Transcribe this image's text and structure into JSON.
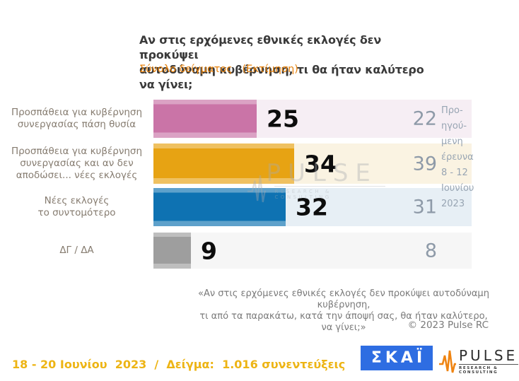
{
  "header": {
    "title": "Αν στις ερχόμενες εθνικές εκλογές δεν προκύψει\nαυτοδύναμη κυβέρνηση, τι θα ήταν καλύτερο να γίνει;",
    "subtitle": "Σύνολο δείγματος   (Εκτίμηση)"
  },
  "chart_data": {
    "type": "bar",
    "orientation": "horizontal",
    "title": "Αν στις ερχόμενες εθνικές εκλογές δεν προκύψει αυτοδύναμη κυβέρνηση, τι θα ήταν καλύτερο να γίνει;",
    "subtitle": "Σύνολο δείγματος (Εκτίμηση)",
    "categories": [
      "Προσπάθεια για κυβέρνηση συνεργασίας πάση θυσία",
      "Προσπάθεια για κυβέρνηση συνεργασίας και αν δεν αποδώσει... νέες εκλογές",
      "Νέες εκλογές το συντομότερο",
      "ΔΓ / ΔΑ"
    ],
    "series": [
      {
        "name": "Εκτίμηση 18 - 20 Ιουνίου 2023",
        "values": [
          25,
          34,
          32,
          9
        ]
      },
      {
        "name": "Προηγούμενη έρευνα 8 - 12 Ιουνίου 2023",
        "values": [
          22,
          39,
          31,
          8
        ]
      }
    ],
    "bar_colors": [
      "#ca74a7",
      "#e7a313",
      "#0e72b2",
      "#9e9e9e"
    ],
    "row_tint_colors": [
      "#f6eef4",
      "#faf3e2",
      "#e7eff5",
      "#f6f6f6"
    ],
    "xlim": [
      0,
      77
    ],
    "grid": false,
    "legend_position": "previous-values-right-column"
  },
  "rows": [
    {
      "label": "Προσπάθεια για κυβέρνηση\nσυνεργασίας πάση θυσία",
      "value": "25",
      "prev": "22"
    },
    {
      "label": "Προσπάθεια για κυβέρνηση\nσυνεργασίας και αν δεν\nαποδώσει... νέες εκλογές",
      "value": "34",
      "prev": "39"
    },
    {
      "label": "Νέες εκλογές\nτο συντομότερο",
      "value": "32",
      "prev": "31"
    },
    {
      "label": "ΔΓ / ΔΑ",
      "value": "9",
      "prev": "8"
    }
  ],
  "prev_note": "Προ-\nηγού-\nμενη\nέρευνα\n8 - 12\nΙουνίου\n2023",
  "watermark": {
    "word": "PULSE",
    "tagline": "RESEARCH & CONSULTING"
  },
  "footer": {
    "annotation": "«Αν στις ερχόμενες εθνικές εκλογές δεν προκύψει αυτοδύναμη κυβέρνηση,\nτι από τα παρακάτω, κατά την άποψή σας, θα ήταν καλύτερο, να γίνει;»",
    "copyright": "© 2023 Pulse RC",
    "fieldwork": "18 - 20 Ιουνίου  2023  /  Δείγμα:  1.016 συνεντεύξεις"
  },
  "logos": {
    "skai_text": "ΣΚΑΪ",
    "pulse_word": "PULSE",
    "pulse_tagline": "RESEARCH & CONSULTING"
  },
  "colors": {
    "subtitle_orange": "#e8820c",
    "fieldwork_amber": "#edb414",
    "skai_blue": "#2e6de2",
    "pulse_wave_orange": "#ef8412",
    "value_black": "#0d0d0d",
    "prev_gray": "#8e9aa8"
  }
}
